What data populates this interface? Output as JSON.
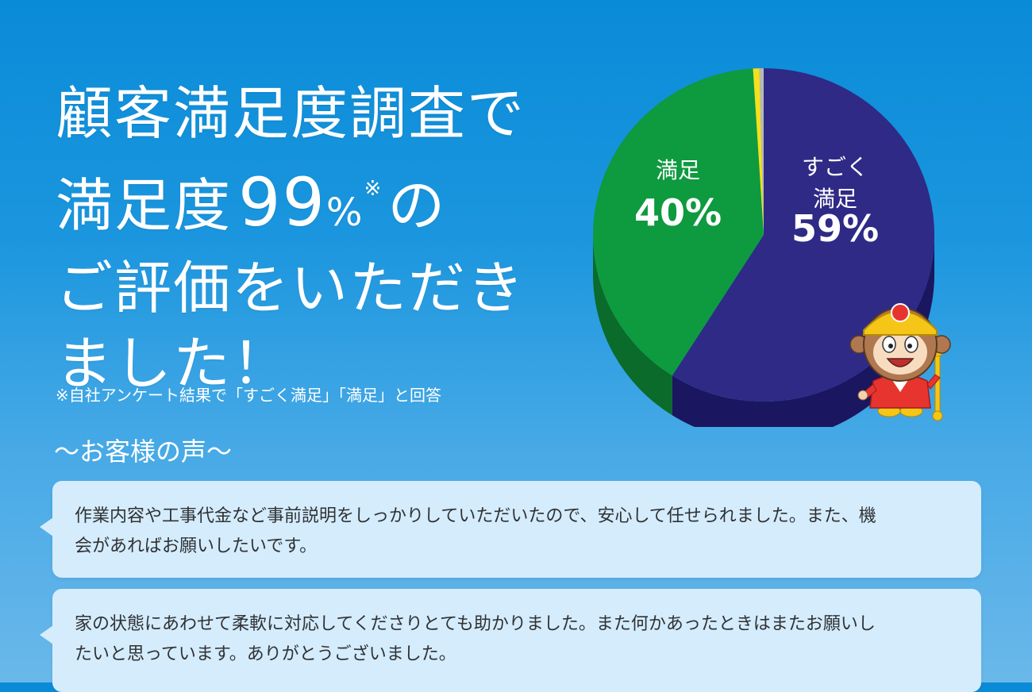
{
  "headline": {
    "line1": "顧客満足度調査で",
    "line2_prefix": "満足度",
    "line2_number": "99",
    "line2_percent": "%",
    "line2_mark": "※",
    "line2_suffix": "の",
    "line3": "ご評価をいただき",
    "line4": "ました！"
  },
  "footnote": "※自社アンケート結果で「すごく満足」「満足」と回答",
  "voices": {
    "title": "～お客様の声～",
    "comments": [
      {
        "line1": "作業内容や工事代金など事前説明をしっかりしていただいたので、安心して任せられました。また、機",
        "line2": "会があればお願いしたいです。"
      },
      {
        "line1": "家の状態にあわせて柔軟に対応してくださりとても助かりました。また何かあったときはまたお願いし",
        "line2": "たいと思っています。ありがとうございました。"
      }
    ]
  },
  "chart_data": {
    "type": "pie",
    "categories": [
      "すごく満足",
      "満足",
      "",
      ""
    ],
    "values": [
      59,
      40,
      0.6,
      0.4
    ],
    "labels": [
      {
        "name_line1": "すごく",
        "name_line2": "満足",
        "value": "59%"
      },
      {
        "name_line1": "満足",
        "name_line2": "",
        "value": "40%"
      }
    ],
    "colors": [
      "#2e2a86",
      "#0e9a3e",
      "#f4e11a",
      "#b8b8b8"
    ],
    "side_colors": [
      "#1a1660",
      "#0a6b2b",
      "#b9a810",
      "#8a8a8a"
    ]
  },
  "mascot": {
    "icon": "monkey-mascot-icon",
    "shirt_color": "#e8342f",
    "helmet_color": "#f5c518"
  }
}
